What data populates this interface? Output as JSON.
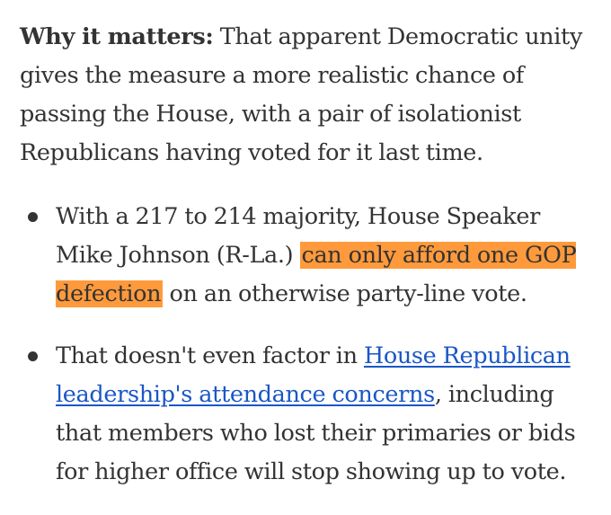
{
  "intro": {
    "lead_label": "Why it matters:",
    "text": " That apparent Democratic unity gives the measure a more realistic chance of passing the House, with a pair of isolationist Republicans having voted for it last time."
  },
  "bullets": [
    {
      "before": "With a 217 to 214 majority, House Speaker Mike Johnson (R-La.) ",
      "highlight": "can only afford one GOP defection",
      "after": " on an otherwise party-line vote."
    },
    {
      "before": "That doesn't even factor in ",
      "link": "House Republican leadership's attendance concerns",
      "after": ", including that members who lost their primaries or bids for higher office will stop showing up to vote."
    }
  ],
  "colors": {
    "highlight": "#ff9a3c",
    "link": "#1a56c7",
    "text": "#333333"
  }
}
